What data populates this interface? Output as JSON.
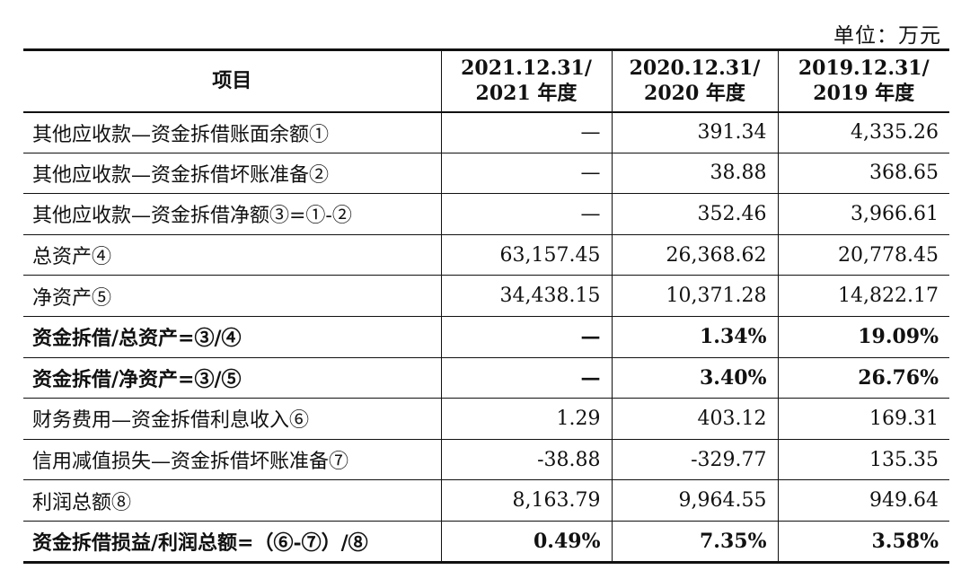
{
  "unit_label": "单位：万元",
  "table": {
    "headers": {
      "item": "项目",
      "col1_line1": "2021.12.31/",
      "col1_line2": "2021 年度",
      "col2_line1": "2020.12.31/",
      "col2_line2": "2020 年度",
      "col3_line1": "2019.12.31/",
      "col3_line2": "2019 年度"
    },
    "rows": [
      {
        "item": "其他应收款—资金拆借账面余额①",
        "v2021": "—",
        "v2020": "391.34",
        "v2019": "4,335.26",
        "bold": false
      },
      {
        "item": "其他应收款—资金拆借坏账准备②",
        "v2021": "—",
        "v2020": "38.88",
        "v2019": "368.65",
        "bold": false
      },
      {
        "item": "其他应收款—资金拆借净额③=①-②",
        "v2021": "—",
        "v2020": "352.46",
        "v2019": "3,966.61",
        "bold": false
      },
      {
        "item": "总资产④",
        "v2021": "63,157.45",
        "v2020": "26,368.62",
        "v2019": "20,778.45",
        "bold": false
      },
      {
        "item": "净资产⑤",
        "v2021": "34,438.15",
        "v2020": "10,371.28",
        "v2019": "14,822.17",
        "bold": false
      },
      {
        "item": "资金拆借/总资产=③/④",
        "v2021": "—",
        "v2020": "1.34%",
        "v2019": "19.09%",
        "bold": true
      },
      {
        "item": "资金拆借/净资产=③/⑤",
        "v2021": "—",
        "v2020": "3.40%",
        "v2019": "26.76%",
        "bold": true
      },
      {
        "item": "财务费用—资金拆借利息收入⑥",
        "v2021": "1.29",
        "v2020": "403.12",
        "v2019": "169.31",
        "bold": false
      },
      {
        "item": "信用减值损失—资金拆借坏账准备⑦",
        "v2021": "-38.88",
        "v2020": "-329.77",
        "v2019": "135.35",
        "bold": false
      },
      {
        "item": "利润总额⑧",
        "v2021": "8,163.79",
        "v2020": "9,964.55",
        "v2019": "949.64",
        "bold": false
      },
      {
        "item": "资金拆借损益/利润总额=（⑥-⑦）/⑧",
        "v2021": "0.49%",
        "v2020": "7.35%",
        "v2019": "3.58%",
        "bold": true
      }
    ]
  }
}
